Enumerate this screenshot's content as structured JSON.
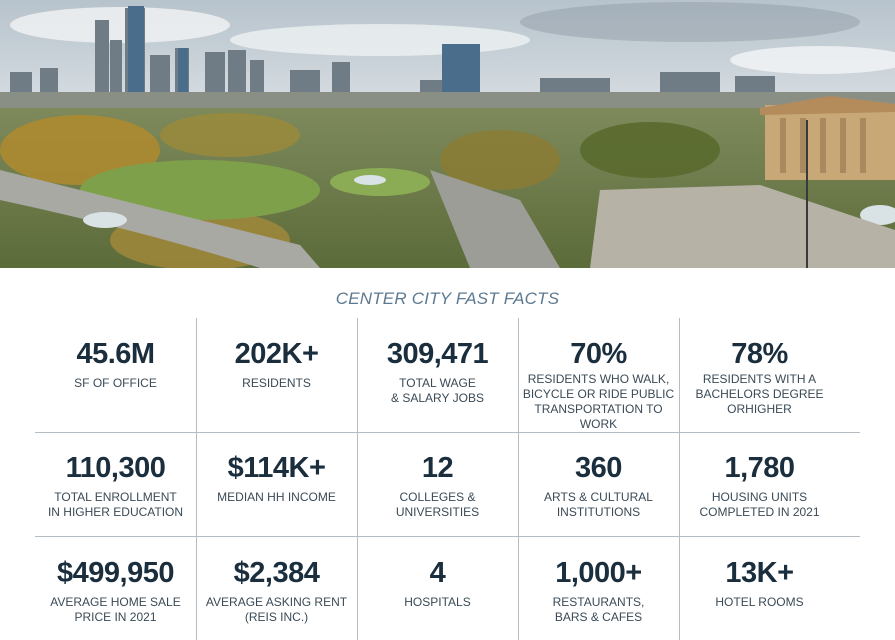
{
  "title": "CENTER CITY FAST FACTS",
  "colors": {
    "accent": "#5d7990",
    "value_text": "#1a2e3d",
    "label_text": "#3a4a56",
    "divider": "#b4bcc4"
  },
  "facts": [
    {
      "value": "45.6M",
      "label": "SF OF OFFICE"
    },
    {
      "value": "202K+",
      "label": "RESIDENTS"
    },
    {
      "value": "309,471",
      "label": "TOTAL WAGE\n& SALARY JOBS"
    },
    {
      "value": "70%",
      "label": "RESIDENTS WHO WALK,\nBICYCLE OR RIDE PUBLIC\nTRANSPORTATION TO\nWORK"
    },
    {
      "value": "78%",
      "label": "RESIDENTS WITH A\nBACHELORS DEGREE\nORHIGHER"
    },
    {
      "value": "110,300",
      "label": "TOTAL ENROLLMENT\nIN HIGHER EDUCATION"
    },
    {
      "value": "$114K+",
      "label": "MEDIAN HH INCOME"
    },
    {
      "value": "12",
      "label": "COLLEGES &\nUNIVERSITIES"
    },
    {
      "value": "360",
      "label": "ARTS & CULTURAL\nINSTITUTIONS"
    },
    {
      "value": "1,780",
      "label": "HOUSING UNITS\nCOMPLETED IN 2021"
    },
    {
      "value": "$499,950",
      "label": "AVERAGE HOME SALE\nPRICE IN 2021"
    },
    {
      "value": "$2,384",
      "label": "AVERAGE ASKING RENT\n(REIS INC.)"
    },
    {
      "value": "4",
      "label": "HOSPITALS"
    },
    {
      "value": "1,000+",
      "label": "RESTAURANTS,\nBARS & CAFES"
    },
    {
      "value": "13K+",
      "label": "HOTEL ROOMS"
    }
  ]
}
